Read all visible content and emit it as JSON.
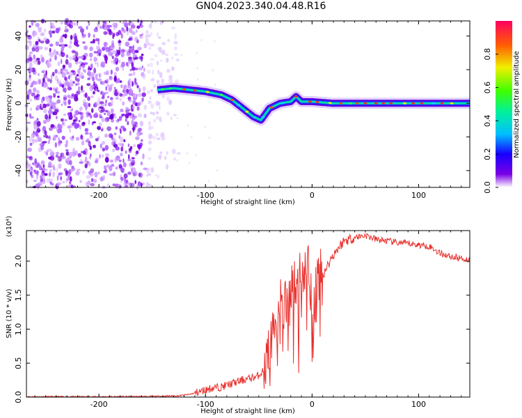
{
  "title": "GN04.2023.340.04.48.R16",
  "chart_data": [
    {
      "type": "heatmap",
      "xlabel": "Height of straight line (km)",
      "ylabel": "Frequency (Hz)",
      "xlim": [
        -268,
        148
      ],
      "ylim": [
        -50,
        49
      ],
      "xticks": [
        -200,
        -100,
        0,
        100
      ],
      "yticks": [
        -40,
        -20,
        0,
        20,
        40
      ],
      "colorbar": {
        "label": "Normalized spectral amplitude",
        "range": [
          0,
          1
        ],
        "ticks": [
          0.0,
          0.2,
          0.4,
          0.6,
          0.8
        ]
      },
      "signal_trace": [
        {
          "x": -145,
          "y": 8
        },
        {
          "x": -130,
          "y": 9
        },
        {
          "x": -115,
          "y": 8
        },
        {
          "x": -100,
          "y": 7
        },
        {
          "x": -85,
          "y": 5
        },
        {
          "x": -75,
          "y": 2
        },
        {
          "x": -65,
          "y": -3
        },
        {
          "x": -55,
          "y": -8
        },
        {
          "x": -48,
          "y": -10
        },
        {
          "x": -40,
          "y": -3
        },
        {
          "x": -30,
          "y": 0
        },
        {
          "x": -20,
          "y": 1
        },
        {
          "x": -15,
          "y": 4
        },
        {
          "x": -10,
          "y": 1
        },
        {
          "x": 0,
          "y": 1
        },
        {
          "x": 20,
          "y": 0
        },
        {
          "x": 50,
          "y": 0
        },
        {
          "x": 100,
          "y": 0
        },
        {
          "x": 148,
          "y": 0
        }
      ],
      "noise_region_x": [
        -268,
        -125
      ]
    },
    {
      "type": "line",
      "xlabel": "Height of straight line (km)",
      "ylabel": "SNR (10 * v/v)",
      "y_multiplier": "(x10⁴)",
      "xlim": [
        -268,
        148
      ],
      "ylim": [
        0,
        2.45
      ],
      "xticks": [
        -200,
        -100,
        0,
        100
      ],
      "yticks": [
        0.0,
        0.5,
        1.0,
        1.5,
        2.0
      ],
      "series": [
        {
          "color": "#e8302c",
          "x": [
            -268,
            -200,
            -150,
            -125,
            -115,
            -105,
            -95,
            -85,
            -75,
            -65,
            -58,
            -52,
            -45,
            -40,
            -36,
            -32,
            -28,
            -24,
            -20,
            -16,
            -12,
            -8,
            -4,
            0,
            4,
            10,
            20,
            30,
            40,
            50,
            60,
            70,
            80,
            90,
            100,
            110,
            120,
            130,
            140,
            148
          ],
          "y": [
            0.005,
            0.005,
            0.01,
            0.02,
            0.04,
            0.08,
            0.13,
            0.15,
            0.2,
            0.25,
            0.28,
            0.3,
            0.4,
            0.6,
            1.0,
            1.4,
            1.3,
            1.5,
            1.6,
            1.8,
            1.7,
            1.85,
            2.0,
            1.2,
            1.7,
            1.8,
            2.1,
            2.3,
            2.35,
            2.38,
            2.32,
            2.3,
            2.27,
            2.26,
            2.24,
            2.22,
            2.12,
            2.07,
            2.04,
            2.02
          ]
        }
      ]
    }
  ]
}
